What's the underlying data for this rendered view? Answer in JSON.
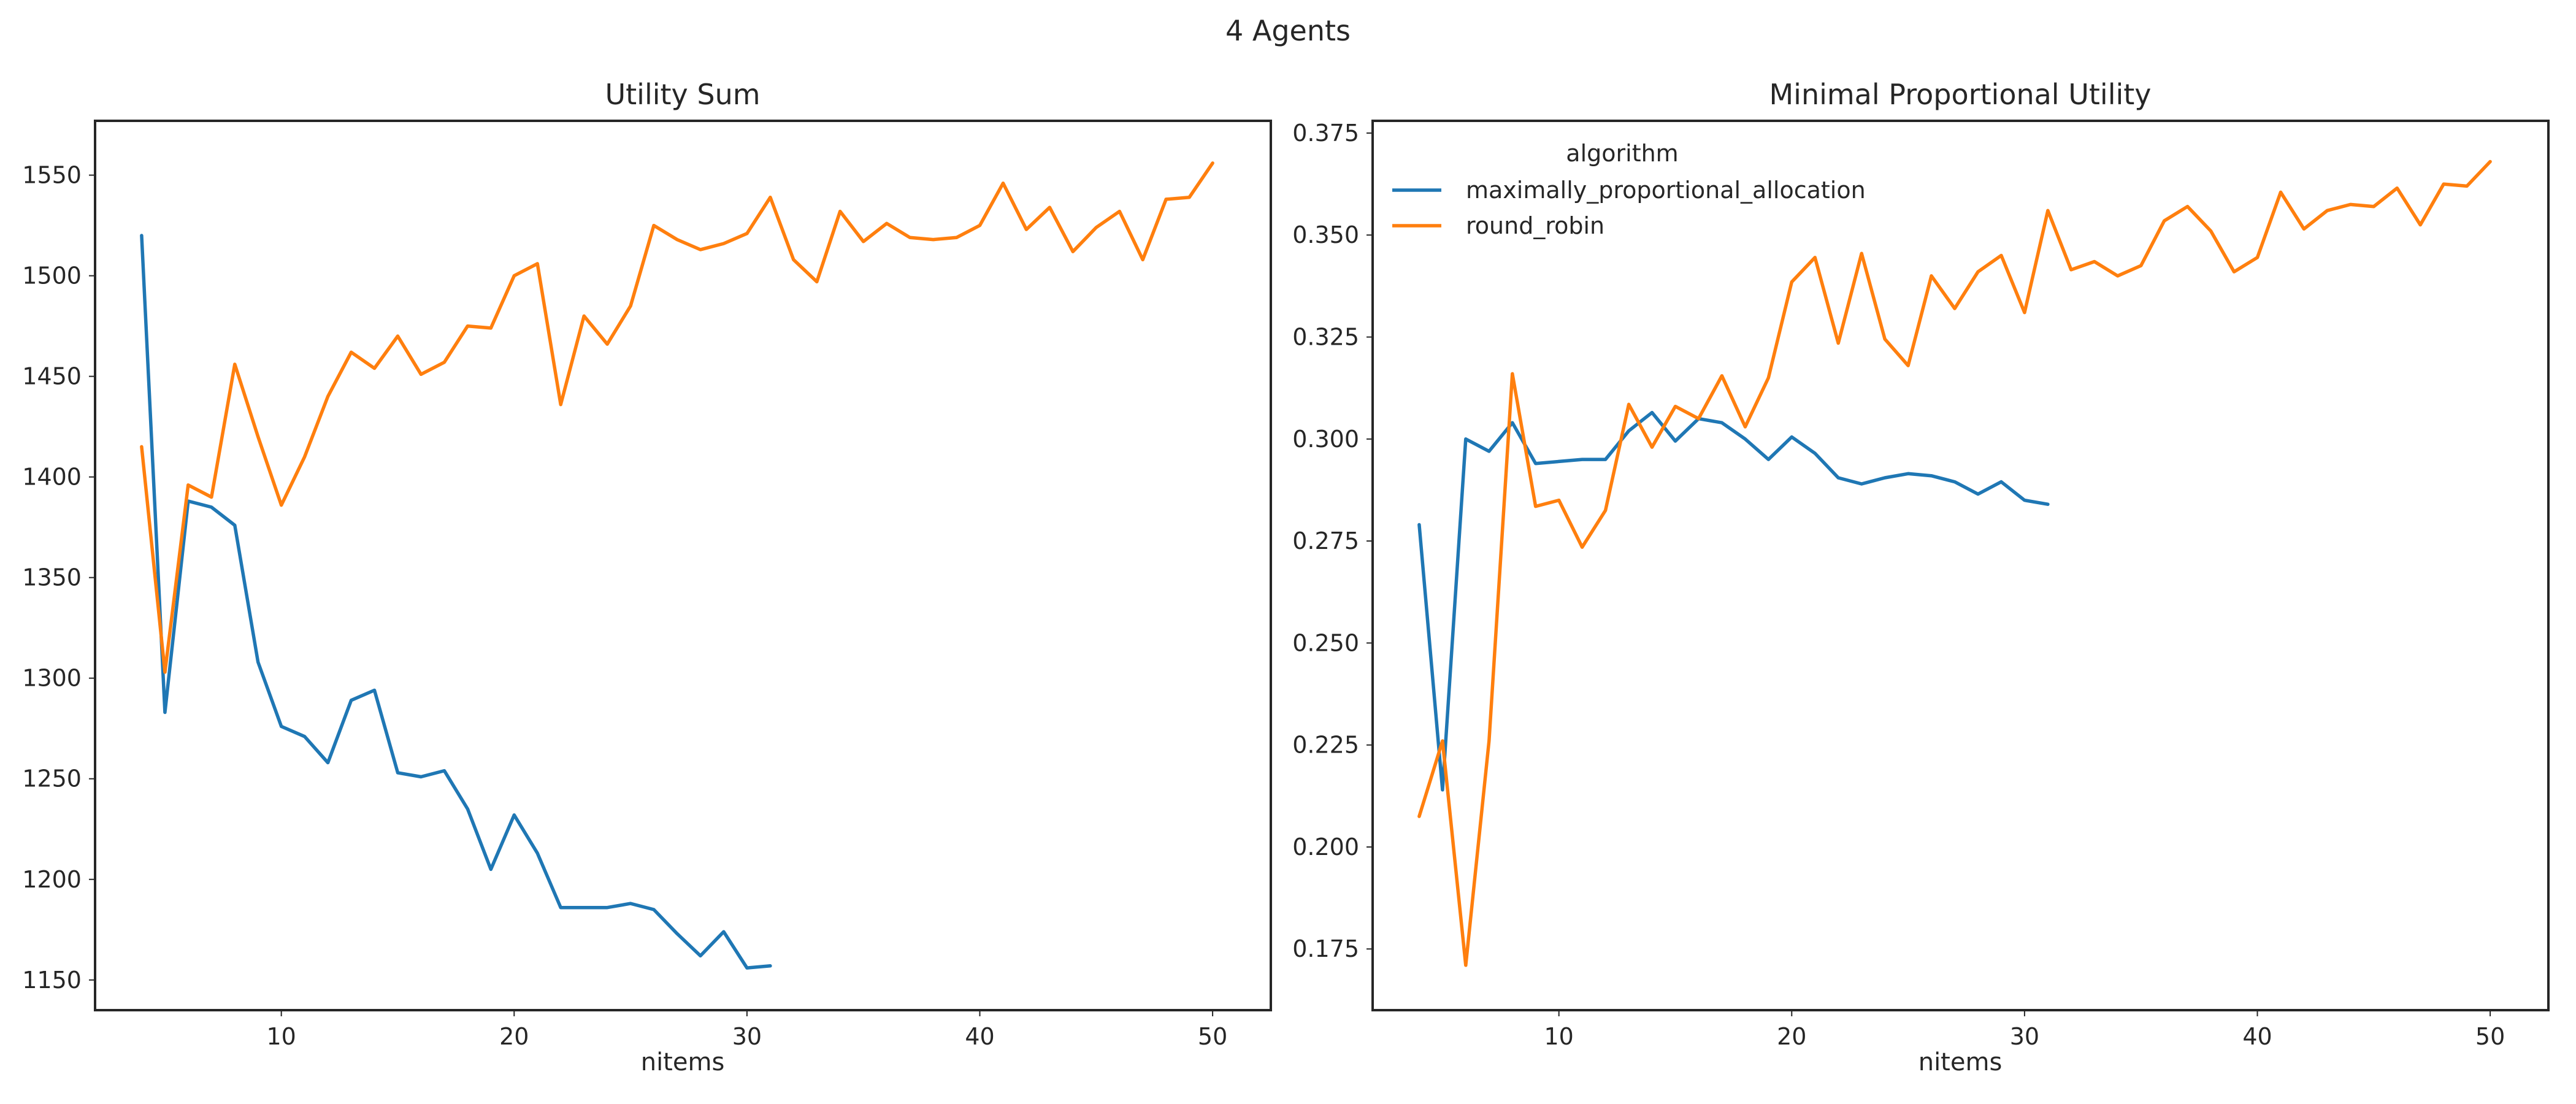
{
  "figure": {
    "title": "4 Agents"
  },
  "colors": {
    "maximally_proportional_allocation": "#1f77b4",
    "round_robin": "#ff7f0e"
  },
  "chart_data": [
    {
      "type": "line",
      "title": "Utility Sum",
      "xlabel": "nitems",
      "ylabel": "",
      "xlim": [
        2,
        52.5
      ],
      "ylim": [
        1135,
        1577
      ],
      "xticks": [
        10,
        20,
        30,
        40,
        50
      ],
      "yticks": [
        1150,
        1200,
        1250,
        1300,
        1350,
        1400,
        1450,
        1500,
        1550
      ],
      "grid": false,
      "legend": null,
      "series": [
        {
          "name": "maximally_proportional_allocation",
          "x": [
            4,
            5,
            6,
            7,
            8,
            9,
            10,
            11,
            12,
            13,
            14,
            15,
            16,
            17,
            18,
            19,
            20,
            21,
            22,
            23,
            24,
            25,
            26,
            27,
            28,
            29,
            30,
            31
          ],
          "y": [
            1520,
            1283,
            1388,
            1385,
            1376,
            1308,
            1276,
            1271,
            1258,
            1289,
            1294,
            1253,
            1251,
            1254,
            1235,
            1205,
            1232,
            1213,
            1186,
            1186,
            1186,
            1188,
            1185,
            1173,
            1162,
            1174,
            1156,
            1157
          ]
        },
        {
          "name": "round_robin",
          "x": [
            4,
            5,
            6,
            7,
            8,
            9,
            10,
            11,
            12,
            13,
            14,
            15,
            16,
            17,
            18,
            19,
            20,
            21,
            22,
            23,
            24,
            25,
            26,
            27,
            28,
            29,
            30,
            31,
            32,
            33,
            34,
            35,
            36,
            37,
            38,
            39,
            40,
            41,
            42,
            43,
            44,
            45,
            46,
            47,
            48,
            49,
            50
          ],
          "y": [
            1415,
            1303,
            1396,
            1390,
            1456,
            1420,
            1386,
            1410,
            1440,
            1462,
            1454,
            1470,
            1451,
            1457,
            1475,
            1474,
            1500,
            1506,
            1436,
            1480,
            1466,
            1485,
            1525,
            1518,
            1513,
            1516,
            1521,
            1539,
            1508,
            1497,
            1532,
            1517,
            1526,
            1519,
            1518,
            1519,
            1525,
            1546,
            1523,
            1534,
            1512,
            1524,
            1532,
            1508,
            1538,
            1539,
            1556
          ]
        }
      ]
    },
    {
      "type": "line",
      "title": "Minimal Proportional Utility",
      "xlabel": "nitems",
      "ylabel": "",
      "xlim": [
        2,
        52.5
      ],
      "ylim": [
        0.16,
        0.378
      ],
      "xticks": [
        10,
        20,
        30,
        40,
        50
      ],
      "yticks": [
        0.175,
        0.2,
        0.225,
        0.25,
        0.275,
        0.3,
        0.325,
        0.35,
        0.375
      ],
      "ytick_labels": [
        "0.175",
        "0.200",
        "0.225",
        "0.250",
        "0.275",
        "0.300",
        "0.325",
        "0.350",
        "0.375"
      ],
      "grid": false,
      "legend": {
        "placement": "top-left",
        "title": "algorithm",
        "entries": [
          "maximally_proportional_allocation",
          "round_robin"
        ]
      },
      "series": [
        {
          "name": "maximally_proportional_allocation",
          "x": [
            4,
            5,
            6,
            7,
            8,
            9,
            10,
            11,
            12,
            13,
            14,
            15,
            16,
            17,
            18,
            19,
            20,
            21,
            22,
            23,
            24,
            25,
            26,
            27,
            28,
            29,
            30,
            31
          ],
          "y": [
            0.279,
            0.214,
            0.3,
            0.297,
            0.304,
            0.294,
            0.2945,
            0.295,
            0.295,
            0.302,
            0.3065,
            0.2995,
            0.305,
            0.304,
            0.3,
            0.295,
            0.3005,
            0.2965,
            0.2905,
            0.289,
            0.2905,
            0.2915,
            0.291,
            0.2895,
            0.2865,
            0.2895,
            0.285,
            0.284
          ]
        },
        {
          "name": "round_robin",
          "x": [
            4,
            5,
            6,
            7,
            8,
            9,
            10,
            11,
            12,
            13,
            14,
            15,
            16,
            17,
            18,
            19,
            20,
            21,
            22,
            23,
            24,
            25,
            26,
            27,
            28,
            29,
            30,
            31,
            32,
            33,
            34,
            35,
            36,
            37,
            38,
            39,
            40,
            41,
            42,
            43,
            44,
            45,
            46,
            47,
            48,
            49,
            50
          ],
          "y": [
            0.2075,
            0.226,
            0.171,
            0.226,
            0.316,
            0.2835,
            0.285,
            0.2735,
            0.2825,
            0.3085,
            0.298,
            0.308,
            0.305,
            0.3155,
            0.303,
            0.315,
            0.3385,
            0.3445,
            0.3235,
            0.3455,
            0.3245,
            0.318,
            0.34,
            0.332,
            0.341,
            0.345,
            0.331,
            0.356,
            0.3415,
            0.3435,
            0.34,
            0.3425,
            0.3535,
            0.357,
            0.351,
            0.341,
            0.3445,
            0.3605,
            0.3515,
            0.356,
            0.3575,
            0.357,
            0.3615,
            0.3525,
            0.3625,
            0.362,
            0.368
          ]
        }
      ]
    }
  ]
}
